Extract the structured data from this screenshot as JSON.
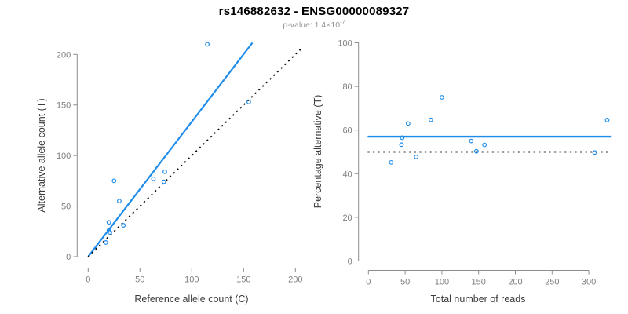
{
  "header": {
    "title": "rs146882632 - ENSG00000089327",
    "pvalue_prefix": "p-value: 1.4×10",
    "pvalue_exponent": "-7"
  },
  "colors": {
    "blue": "#1E8CEB",
    "black": "#000000",
    "axis": "#8C8C8C",
    "tick_label": "#7E7E7E",
    "axis_title": "#3C3C3C",
    "title": "#000000",
    "subtitle": "#969696"
  },
  "chart_data": [
    {
      "type": "scatter",
      "xlabel": "Reference allele count (C)",
      "ylabel": "Alternative allele count (T)",
      "xlim": [
        0,
        200
      ],
      "ylim": [
        0,
        200
      ],
      "xticks": [
        0,
        50,
        100,
        150,
        200
      ],
      "yticks": [
        0,
        50,
        100,
        150,
        200
      ],
      "grid": false,
      "points": [
        [
          17,
          14
        ],
        [
          20,
          26
        ],
        [
          21,
          24
        ],
        [
          20,
          34
        ],
        [
          34,
          31
        ],
        [
          30,
          55
        ],
        [
          25,
          75
        ],
        [
          63,
          77
        ],
        [
          73,
          74
        ],
        [
          74,
          84
        ],
        [
          115,
          210
        ],
        [
          155,
          153
        ]
      ],
      "lines": [
        {
          "name": "fit-line",
          "from": [
            0,
            0
          ],
          "to": [
            158.5,
            211.5
          ],
          "color": "blue",
          "width": 2.2,
          "dash": ""
        },
        {
          "name": "identity-line",
          "from": [
            0,
            0
          ],
          "to": [
            207.5,
            207.5
          ],
          "color": "black",
          "width": 1.7,
          "dash": "2.2 4.4"
        }
      ]
    },
    {
      "type": "scatter",
      "xlabel": "Total number of reads",
      "ylabel": "Percentage alternative (T)",
      "xlim": [
        0,
        330
      ],
      "ylim": [
        0,
        100
      ],
      "xticks": [
        0,
        50,
        100,
        150,
        200,
        250,
        300
      ],
      "yticks": [
        0,
        20,
        40,
        60,
        80,
        100
      ],
      "grid": false,
      "points": [
        [
          31,
          45.2
        ],
        [
          45,
          53.3
        ],
        [
          46,
          56.5
        ],
        [
          54,
          63.0
        ],
        [
          65,
          47.7
        ],
        [
          85,
          64.7
        ],
        [
          100,
          75.0
        ],
        [
          140,
          55.0
        ],
        [
          147,
          50.3
        ],
        [
          158,
          53.2
        ],
        [
          308,
          49.7
        ],
        [
          325,
          64.6
        ]
      ],
      "lines": [
        {
          "name": "fit-line",
          "from": [
            -1,
            57
          ],
          "to": [
            330,
            57
          ],
          "color": "blue",
          "width": 2.4,
          "dash": ""
        },
        {
          "name": "null-line",
          "from": [
            -1,
            50
          ],
          "to": [
            330,
            50
          ],
          "color": "black",
          "width": 1.7,
          "dash": "2.2 4.4"
        }
      ]
    }
  ]
}
